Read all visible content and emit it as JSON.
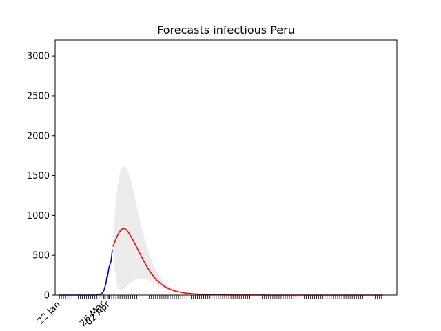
{
  "chart_data": {
    "type": "line",
    "title": "Forecasts infectious Peru",
    "xlabel": "",
    "ylabel": "",
    "x_tick_labels": [
      "22 Jan",
      "26 Mar",
      "02 Apr"
    ],
    "x_tick_days": [
      0,
      64,
      71
    ],
    "x_range_days": [
      -6,
      484
    ],
    "minor_tick_days": [
      0,
      464
    ],
    "ylim": [
      0,
      3200
    ],
    "y_ticks": [
      0,
      500,
      1000,
      1500,
      2000,
      2500,
      3000
    ],
    "series": [
      {
        "role": "observed",
        "color": "#0000cc",
        "points": [
          [
            0,
            0
          ],
          [
            5,
            0
          ],
          [
            10,
            0
          ],
          [
            15,
            0
          ],
          [
            20,
            0
          ],
          [
            25,
            0
          ],
          [
            30,
            0
          ],
          [
            35,
            0
          ],
          [
            40,
            0
          ],
          [
            45,
            0
          ],
          [
            50,
            0
          ],
          [
            53,
            1
          ],
          [
            55,
            3
          ],
          [
            57,
            6
          ],
          [
            59,
            12
          ],
          [
            61,
            22
          ],
          [
            63,
            45
          ],
          [
            64,
            60
          ],
          [
            65,
            95
          ],
          [
            66,
            120
          ],
          [
            67,
            150
          ],
          [
            68,
            230
          ],
          [
            69,
            225
          ],
          [
            70,
            285
          ],
          [
            71,
            340
          ],
          [
            72,
            370
          ],
          [
            73,
            395
          ],
          [
            74,
            420
          ],
          [
            75,
            490
          ],
          [
            76,
            575
          ]
        ]
      },
      {
        "role": "forecast",
        "color": "#ff0000",
        "points": [
          [
            77,
            610
          ],
          [
            80,
            680
          ],
          [
            83,
            740
          ],
          [
            86,
            790
          ],
          [
            89,
            825
          ],
          [
            92,
            838
          ],
          [
            95,
            828
          ],
          [
            98,
            800
          ],
          [
            101,
            760
          ],
          [
            105,
            700
          ],
          [
            110,
            615
          ],
          [
            115,
            530
          ],
          [
            120,
            445
          ],
          [
            125,
            365
          ],
          [
            130,
            295
          ],
          [
            135,
            235
          ],
          [
            140,
            185
          ],
          [
            145,
            145
          ],
          [
            150,
            113
          ],
          [
            155,
            88
          ],
          [
            160,
            69
          ],
          [
            165,
            54
          ],
          [
            170,
            42
          ],
          [
            180,
            26
          ],
          [
            190,
            17
          ],
          [
            200,
            11
          ],
          [
            220,
            5
          ],
          [
            240,
            2
          ],
          [
            260,
            1
          ],
          [
            300,
            0
          ],
          [
            350,
            0
          ],
          [
            400,
            0
          ],
          [
            464,
            0
          ]
        ]
      }
    ],
    "band": {
      "color": "#ebebeb",
      "upper": [
        [
          77,
          590
        ],
        [
          80,
          1060
        ],
        [
          83,
          1320
        ],
        [
          86,
          1500
        ],
        [
          89,
          1590
        ],
        [
          92,
          1618
        ],
        [
          95,
          1605
        ],
        [
          98,
          1555
        ],
        [
          101,
          1480
        ],
        [
          105,
          1350
        ],
        [
          110,
          1160
        ],
        [
          115,
          960
        ],
        [
          120,
          780
        ],
        [
          125,
          620
        ],
        [
          130,
          490
        ],
        [
          135,
          380
        ],
        [
          140,
          290
        ],
        [
          145,
          220
        ],
        [
          150,
          165
        ],
        [
          155,
          125
        ],
        [
          160,
          92
        ],
        [
          165,
          68
        ],
        [
          170,
          50
        ],
        [
          180,
          28
        ],
        [
          190,
          16
        ],
        [
          200,
          9
        ],
        [
          220,
          4
        ],
        [
          240,
          2
        ],
        [
          260,
          1
        ],
        [
          300,
          0
        ],
        [
          350,
          0
        ],
        [
          400,
          0
        ],
        [
          464,
          0
        ]
      ],
      "lower": [
        [
          77,
          570
        ],
        [
          80,
          300
        ],
        [
          83,
          110
        ],
        [
          86,
          65
        ],
        [
          89,
          55
        ],
        [
          92,
          75
        ],
        [
          95,
          100
        ],
        [
          98,
          125
        ],
        [
          101,
          150
        ],
        [
          105,
          175
        ],
        [
          110,
          200
        ],
        [
          115,
          212
        ],
        [
          120,
          210
        ],
        [
          125,
          200
        ],
        [
          130,
          180
        ],
        [
          135,
          158
        ],
        [
          140,
          134
        ],
        [
          145,
          110
        ],
        [
          150,
          88
        ],
        [
          155,
          70
        ],
        [
          160,
          54
        ],
        [
          165,
          42
        ],
        [
          170,
          32
        ],
        [
          180,
          19
        ],
        [
          190,
          11
        ],
        [
          200,
          7
        ],
        [
          220,
          3
        ],
        [
          240,
          1
        ],
        [
          260,
          0
        ],
        [
          300,
          0
        ],
        [
          350,
          0
        ],
        [
          400,
          0
        ],
        [
          464,
          0
        ]
      ]
    },
    "grid": false,
    "legend": "none"
  }
}
